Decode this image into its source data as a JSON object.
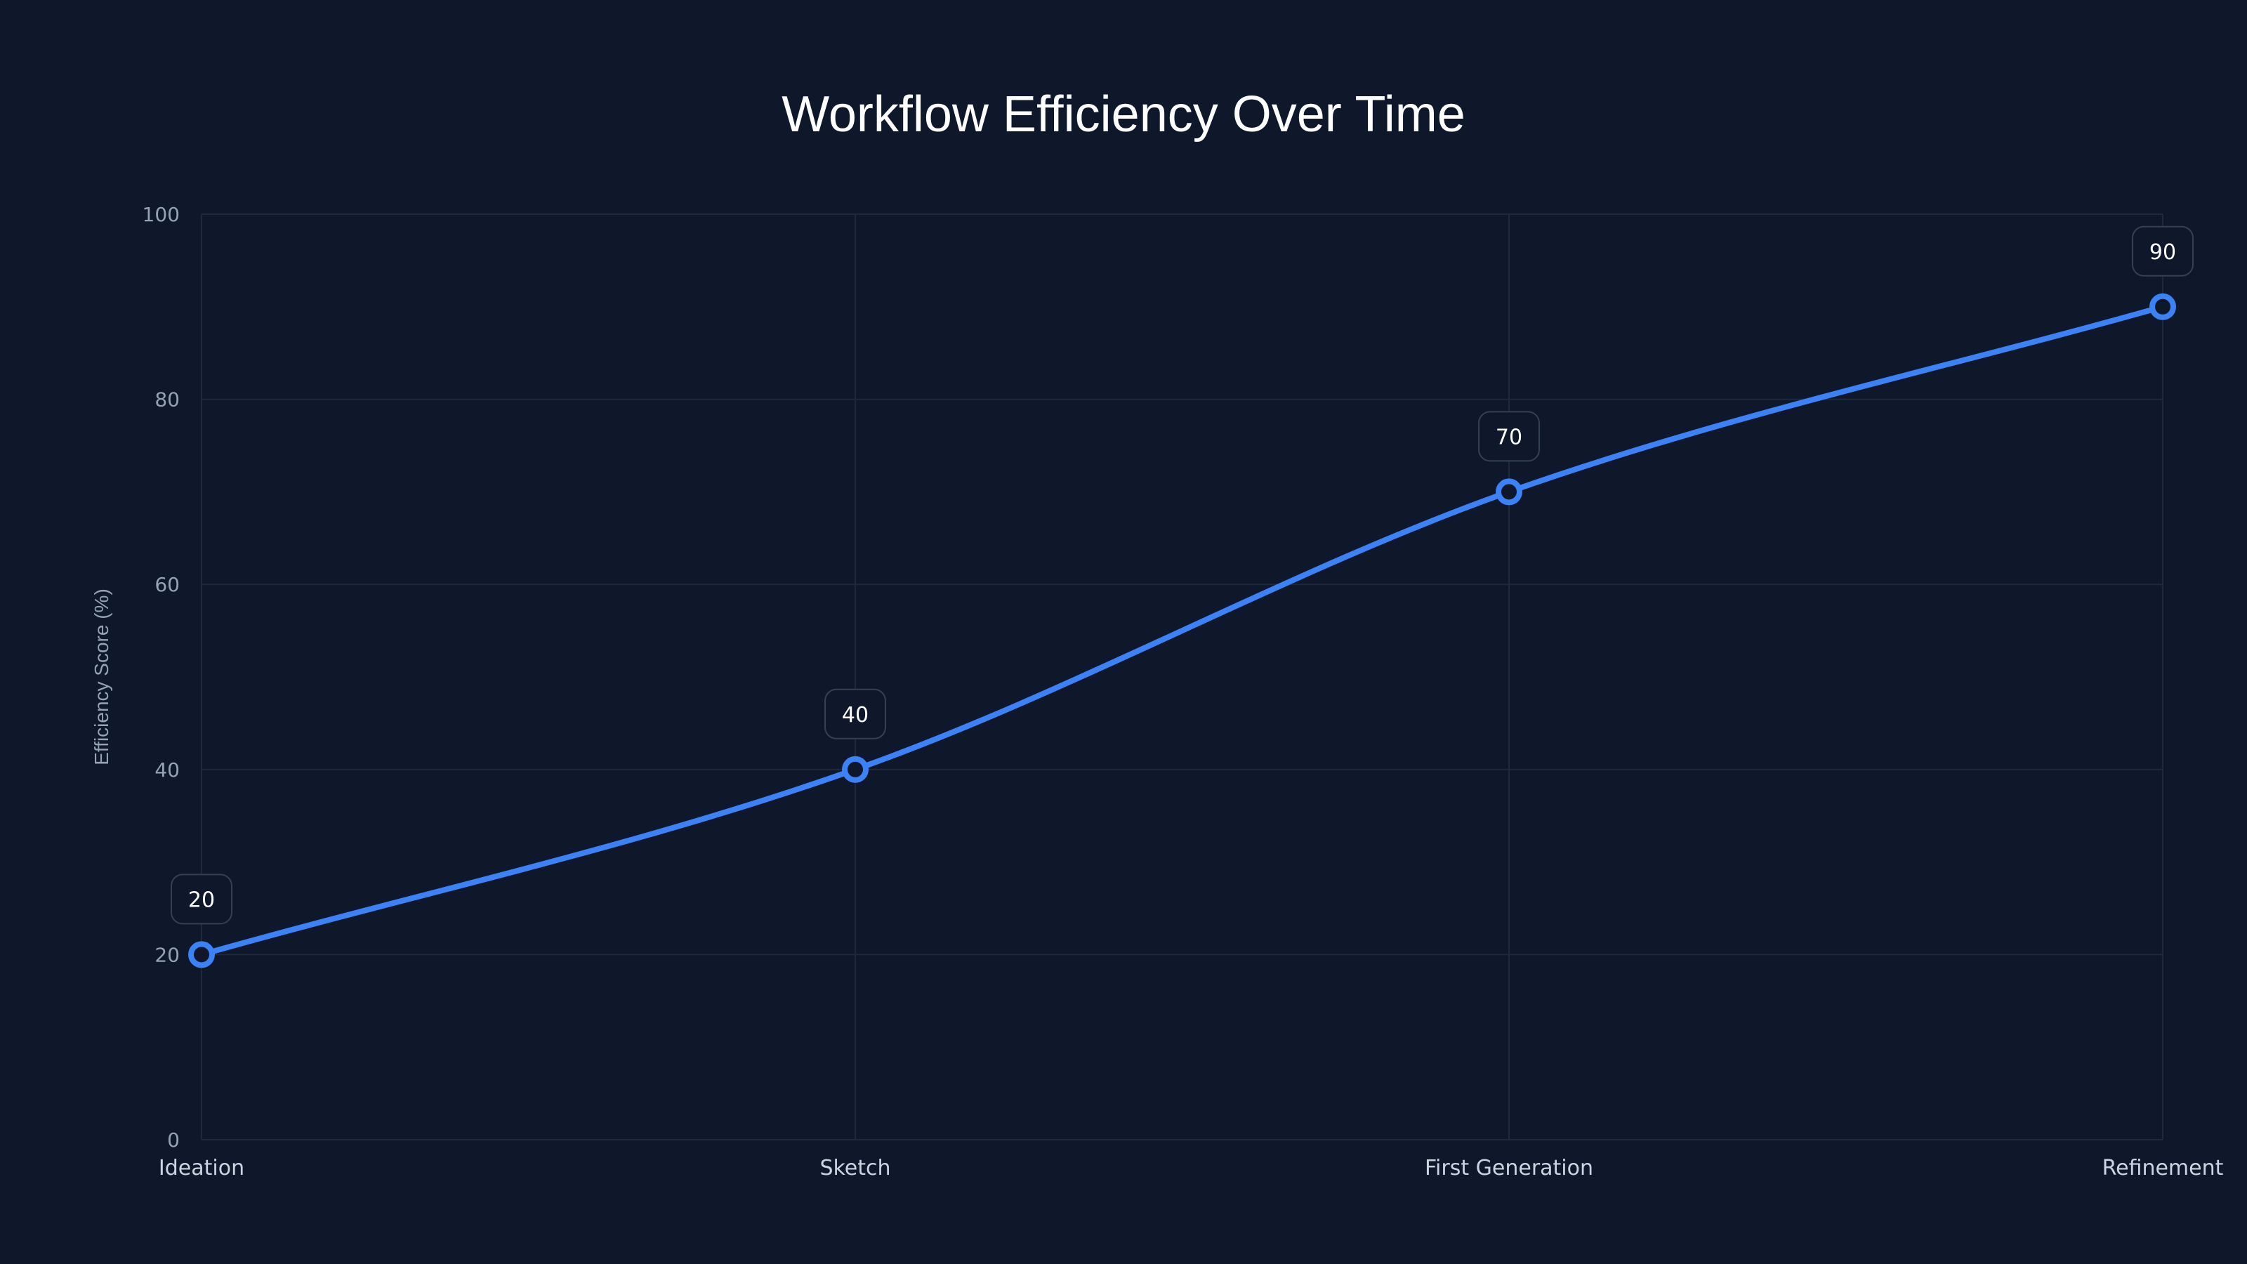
{
  "title": "Workflow Efficiency Over Time",
  "y_axis": {
    "label": "Efficiency Score (%)",
    "ticks": [
      "0",
      "20",
      "40",
      "60",
      "80",
      "100"
    ]
  },
  "x_axis": {
    "ticks": [
      "Ideation",
      "Sketch",
      "First Generation",
      "Refinement"
    ]
  },
  "colors": {
    "background": "#0f172a",
    "line": "#3b82f6",
    "grid": "#1e293b",
    "label_border": "#334155"
  },
  "chart_data": {
    "type": "line",
    "title": "Workflow Efficiency Over Time",
    "xlabel": "",
    "ylabel": "Efficiency Score (%)",
    "categories": [
      "Ideation",
      "Sketch",
      "First Generation",
      "Refinement"
    ],
    "series": [
      {
        "name": "Efficiency Score",
        "values": [
          20,
          40,
          70,
          90
        ]
      }
    ],
    "ylim": [
      0,
      100
    ],
    "yticks": [
      0,
      20,
      40,
      60,
      80,
      100
    ],
    "grid": true,
    "legend": "none",
    "data_labels": [
      "20",
      "40",
      "70",
      "90"
    ]
  }
}
